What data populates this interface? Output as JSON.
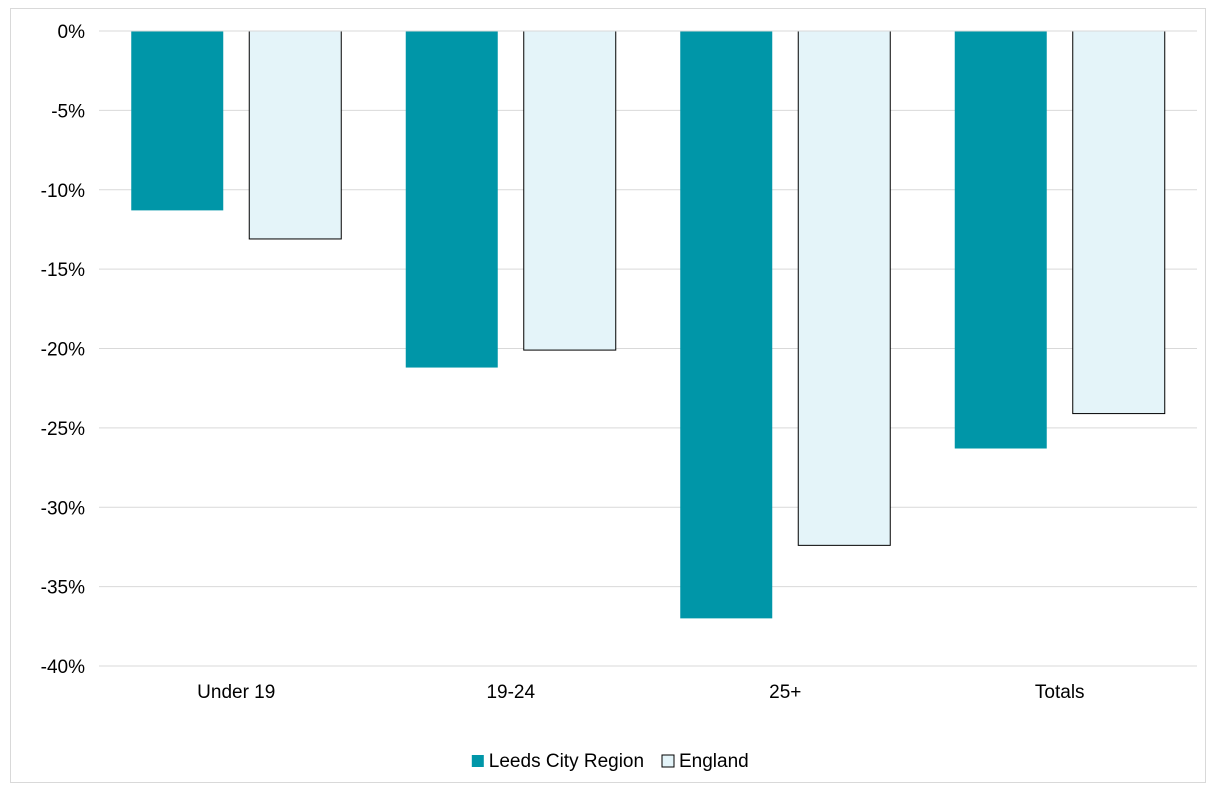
{
  "chart_data": {
    "type": "bar",
    "title": "",
    "xlabel": "",
    "ylabel": "",
    "categories": [
      "Under 19",
      "19-24",
      "25+",
      "Totals"
    ],
    "series": [
      {
        "name": "Leeds City Region",
        "values": [
          -11.3,
          -21.2,
          -37.0,
          -26.3
        ],
        "color": "#0096a8",
        "stroke": "none"
      },
      {
        "name": "England",
        "values": [
          -13.1,
          -20.1,
          -32.4,
          -24.1
        ],
        "color": "#e4f4f9",
        "stroke": "#000000"
      }
    ],
    "ylim": [
      -40,
      0
    ],
    "yticks": [
      0,
      -5,
      -10,
      -15,
      -20,
      -25,
      -30,
      -35,
      -40
    ],
    "ytick_labels": [
      "0%",
      "-5%",
      "-10%",
      "-15%",
      "-20%",
      "-25%",
      "-30%",
      "-35%",
      "-40%"
    ],
    "grid": true,
    "legend_position": "bottom"
  }
}
